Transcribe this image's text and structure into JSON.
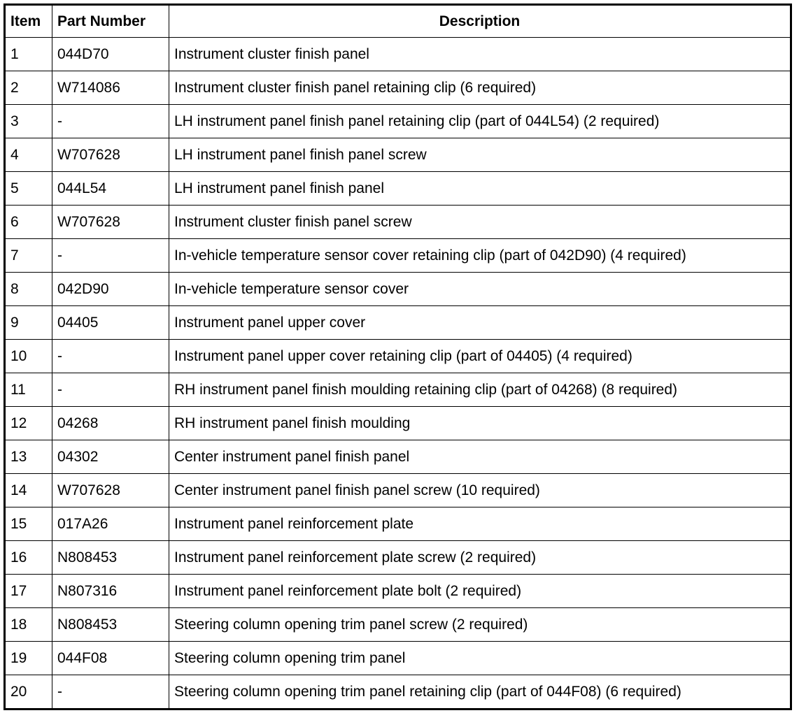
{
  "table": {
    "headers": [
      "Item",
      "Part Number",
      "Description"
    ],
    "rows": [
      [
        "1",
        "044D70",
        "Instrument cluster finish panel"
      ],
      [
        "2",
        "W714086",
        "Instrument cluster finish panel retaining clip (6 required)"
      ],
      [
        "3",
        "-",
        "LH instrument panel finish panel retaining clip (part of 044L54) (2 required)"
      ],
      [
        "4",
        "W707628",
        "LH instrument panel finish panel screw"
      ],
      [
        "5",
        "044L54",
        "LH instrument panel finish panel"
      ],
      [
        "6",
        "W707628",
        "Instrument cluster finish panel screw"
      ],
      [
        "7",
        "-",
        "In-vehicle temperature sensor cover retaining clip (part of 042D90) (4 required)"
      ],
      [
        "8",
        "042D90",
        "In-vehicle temperature sensor cover"
      ],
      [
        "9",
        "04405",
        "Instrument panel upper cover"
      ],
      [
        "10",
        "-",
        "Instrument panel upper cover retaining clip (part of 04405) (4 required)"
      ],
      [
        "11",
        "-",
        "RH instrument panel finish moulding retaining clip (part of 04268) (8 required)"
      ],
      [
        "12",
        "04268",
        "RH instrument panel finish moulding"
      ],
      [
        "13",
        "04302",
        "Center instrument panel finish panel"
      ],
      [
        "14",
        "W707628",
        "Center instrument panel finish panel screw (10 required)"
      ],
      [
        "15",
        "017A26",
        "Instrument panel reinforcement plate"
      ],
      [
        "16",
        "N808453",
        "Instrument panel reinforcement plate screw (2 required)"
      ],
      [
        "17",
        "N807316",
        "Instrument panel reinforcement plate bolt (2 required)"
      ],
      [
        "18",
        "N808453",
        "Steering column opening trim panel screw (2 required)"
      ],
      [
        "19",
        "044F08",
        "Steering column opening trim panel"
      ],
      [
        "20",
        "-",
        "Steering column opening trim panel retaining clip (part of 044F08) (6 required)"
      ]
    ]
  }
}
